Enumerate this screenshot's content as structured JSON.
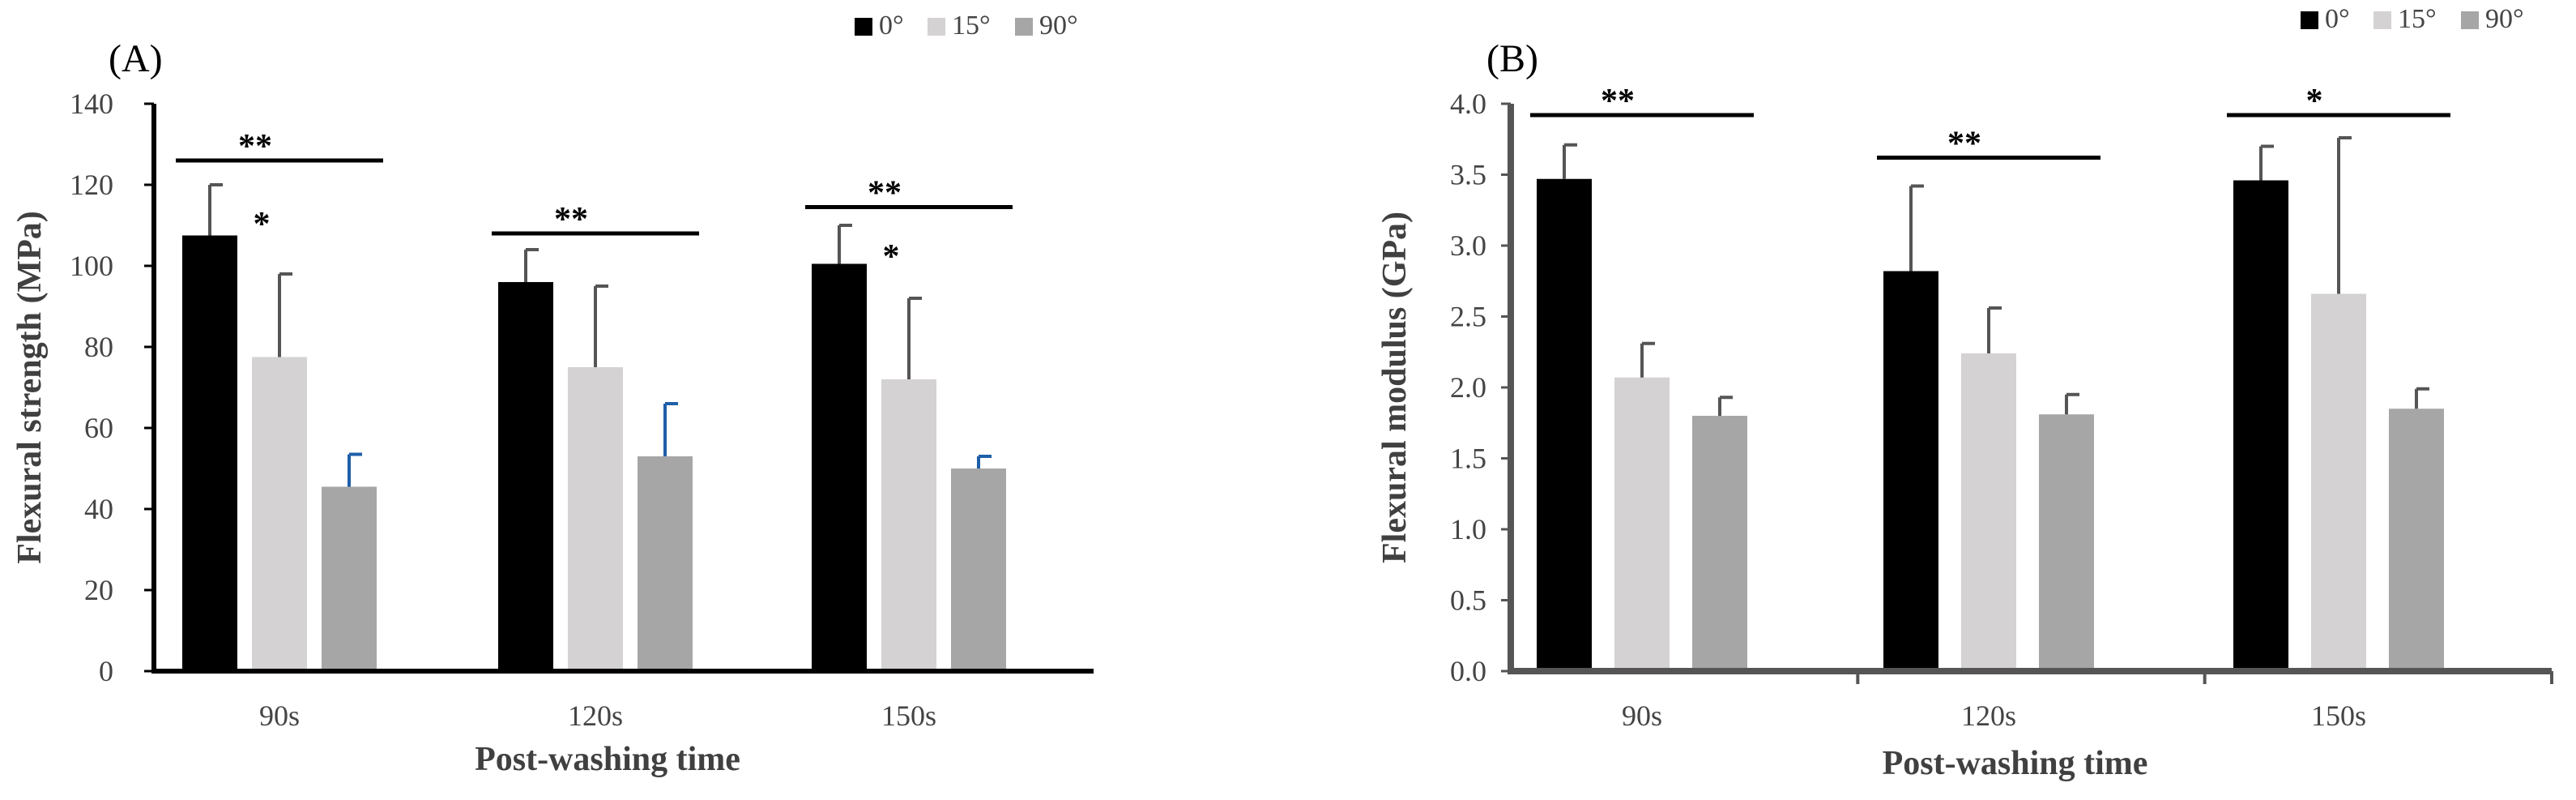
{
  "chart_data": [
    {
      "type": "bar",
      "panel_label": "(A)",
      "title": "",
      "xlabel": "Post-washing time",
      "ylabel": "Flexural strength (MPa)",
      "ylim": [
        0,
        140
      ],
      "yticks": [
        "0",
        "20",
        "40",
        "60",
        "80",
        "100",
        "120",
        "140"
      ],
      "categories": [
        "90s",
        "120s",
        "150s"
      ],
      "series": [
        {
          "name": "0°",
          "color": "#000000",
          "values": [
            107.5,
            96,
            100.5
          ],
          "errors": [
            12.5,
            8,
            9.5
          ],
          "error_color": "#555555"
        },
        {
          "name": "15°",
          "color": "#d4d2d3",
          "values": [
            77.5,
            75,
            72
          ],
          "errors": [
            20.5,
            20,
            20
          ],
          "error_color": "#555555"
        },
        {
          "name": "90°",
          "color": "#a6a6a6",
          "values": [
            45.5,
            53,
            50
          ],
          "errors": [
            8,
            13,
            3
          ],
          "error_color": "#1f5fa8"
        }
      ],
      "legend_position": "top-right",
      "annotations": [
        {
          "text": "**",
          "category_index": 0,
          "from_series": 0,
          "to_series": 2,
          "level": 126,
          "type": "bracket"
        },
        {
          "text": "*",
          "category_index": 0,
          "series_index": 0,
          "level": 112,
          "type": "star"
        },
        {
          "text": "**",
          "category_index": 1,
          "from_series": 0,
          "to_series": 2,
          "level": 108,
          "type": "bracket"
        },
        {
          "text": "**",
          "category_index": 2,
          "from_series": 0,
          "to_series": 2,
          "level": 114.5,
          "type": "bracket"
        },
        {
          "text": "*",
          "category_index": 2,
          "series_index": 0,
          "level": 104,
          "type": "star"
        }
      ]
    },
    {
      "type": "bar",
      "panel_label": "(B)",
      "title": "",
      "xlabel": "Post-washing time",
      "ylabel": "Flexural modulus (GPa)",
      "ylim": [
        0,
        4.0
      ],
      "yticks": [
        "0.0",
        "0.5",
        "1.0",
        "1.5",
        "2.0",
        "2.5",
        "3.0",
        "3.5",
        "4.0"
      ],
      "categories": [
        "90s",
        "120s",
        "150s"
      ],
      "series": [
        {
          "name": "0°",
          "color": "#000000",
          "values": [
            3.47,
            2.82,
            3.46
          ],
          "errors": [
            0.24,
            0.6,
            0.24
          ],
          "error_color": "#555555"
        },
        {
          "name": "15°",
          "color": "#d4d2d3",
          "values": [
            2.07,
            2.24,
            2.66
          ],
          "errors": [
            0.24,
            0.32,
            1.1
          ],
          "error_color": "#555555"
        },
        {
          "name": "90°",
          "color": "#a6a6a6",
          "values": [
            1.8,
            1.81,
            1.85
          ],
          "errors": [
            0.13,
            0.14,
            0.14
          ],
          "error_color": "#555555"
        }
      ],
      "legend_position": "top-right",
      "annotations": [
        {
          "text": "**",
          "category_index": 0,
          "from_series": 0,
          "to_series": 2,
          "level": 3.92,
          "type": "bracket"
        },
        {
          "text": "**",
          "category_index": 1,
          "from_series": 0,
          "to_series": 2,
          "level": 3.62,
          "type": "bracket"
        },
        {
          "text": "*",
          "category_index": 2,
          "from_series": 0,
          "to_series": 2,
          "level": 3.92,
          "type": "bracket"
        }
      ]
    }
  ]
}
